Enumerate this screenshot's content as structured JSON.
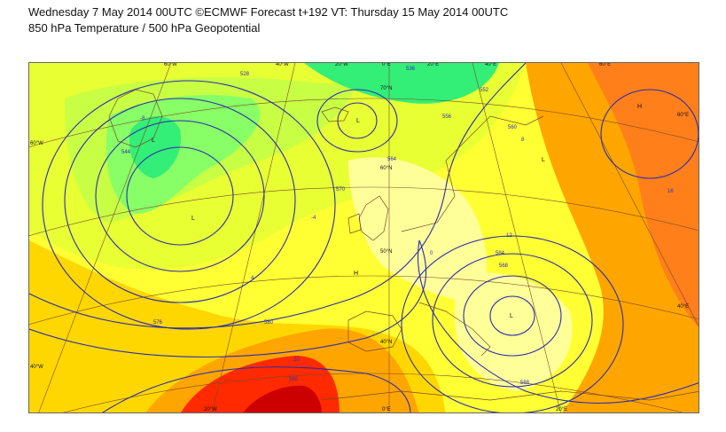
{
  "header": {
    "line1": "Wednesday 7 May 2014 00UTC ©ECMWF Forecast t+192 VT: Thursday 15 May 2014 00UTC",
    "line2": "850 hPa Temperature / 500 hPa Geopotential"
  },
  "map": {
    "colors": {
      "cold_green": "#33ee77",
      "green": "#88ff66",
      "light_green": "#c8ff44",
      "yellow_green": "#e8ff33",
      "yellow": "#ffff33",
      "pale_yellow": "#ffff99",
      "gold": "#ffd700",
      "orange": "#ffa500",
      "dark_orange": "#ff7f1a",
      "red": "#ff2a00",
      "dark_red": "#cc0000",
      "geopotential_line": "#2b2bb0",
      "graticule_line": "#7a4b2a",
      "temperature_label": "#2233cc"
    },
    "axis_labels": {
      "top": [
        "60°W",
        "40°W",
        "20°W",
        "0°E",
        "20°E",
        "40°E",
        "60°E"
      ],
      "bottom": [
        "20°W",
        "0°E",
        "20°E"
      ],
      "left": [
        "60°W",
        "40°W"
      ],
      "right": [
        "60°E",
        "40°E"
      ],
      "interior": [
        "70°N",
        "60°N",
        "50°N",
        "40°N"
      ]
    },
    "geopotential_labels": [
      "528",
      "536",
      "544",
      "552",
      "556",
      "560",
      "564",
      "568",
      "570",
      "576",
      "580",
      "584",
      "588",
      "592"
    ],
    "temperature_labels": [
      "-8",
      "-4",
      "0",
      "4",
      "8",
      "12",
      "16",
      "20"
    ],
    "pressure_centers": [
      "L",
      "L",
      "L",
      "L",
      "L",
      "H",
      "H"
    ]
  }
}
